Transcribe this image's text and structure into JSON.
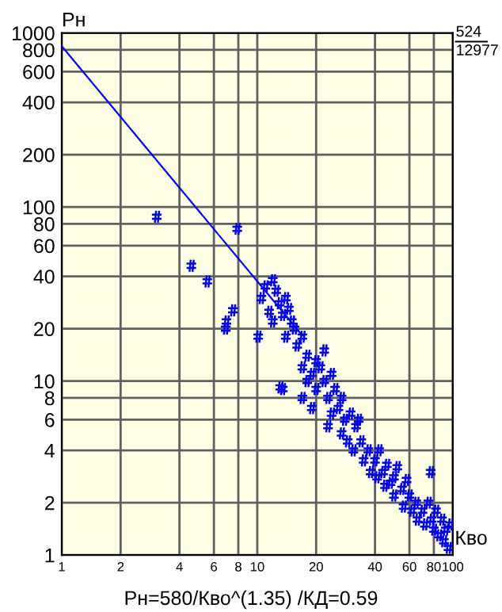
{
  "chart_data": {
    "type": "scatter",
    "xlabel": "Кво",
    "ylabel": "Рн",
    "annotations": [
      "Рн=580/Кво^(1.35) /КД=0.59",
      "524",
      "12977"
    ],
    "log": "xy",
    "grid": true,
    "xlim": [
      1,
      100
    ],
    "xticks": [
      1,
      2,
      4,
      6,
      8,
      10,
      20,
      40,
      60,
      80,
      100
    ],
    "ylim": [
      1,
      1000
    ],
    "yticks": [
      1,
      2,
      4,
      6,
      8,
      10,
      20,
      40,
      60,
      80,
      100,
      200,
      400,
      600,
      800,
      1000
    ],
    "series": [
      {
        "color": "#0000ff",
        "x": [
          3.06,
          4.6,
          5.55,
          7.9,
          6.95,
          7.5,
          6.9,
          10.1,
          13.1,
          77,
          10.5,
          11,
          12,
          12.5,
          13,
          11.5,
          12,
          13.5,
          14,
          14.5,
          15,
          15.5,
          14,
          13.5,
          16,
          17,
          18,
          17,
          18,
          19,
          20,
          21,
          20,
          22,
          23,
          22,
          24,
          25,
          24,
          26,
          27,
          28,
          27,
          30,
          29,
          32,
          31,
          34,
          35,
          33,
          37,
          38,
          40,
          42,
          41,
          44,
          46,
          45,
          48,
          50,
          50,
          52,
          55,
          56,
          58,
          60,
          62,
          65,
          66,
          70,
          72,
          75,
          78,
          80,
          82,
          85,
          88,
          90,
          92,
          95,
          97,
          17,
          19,
          23
        ],
        "values": [
          88,
          46,
          37.4,
          75,
          22,
          25.5,
          20,
          18,
          9.2,
          3.0,
          30,
          35,
          38,
          33,
          28,
          25,
          22,
          24,
          30,
          26,
          22,
          20,
          18,
          9,
          16,
          18,
          14,
          12,
          10,
          11,
          13,
          12,
          9,
          10,
          8,
          15,
          11,
          9,
          6.5,
          7,
          8,
          6,
          5,
          6.5,
          4.5,
          5.5,
          4,
          4.5,
          3.5,
          6,
          4,
          3,
          3.5,
          4,
          2.8,
          3,
          3.3,
          2.5,
          2.6,
          2.8,
          2.2,
          3.2,
          2.4,
          1.9,
          2.7,
          2.2,
          1.8,
          2,
          1.6,
          1.8,
          1.5,
          2,
          1.6,
          1.4,
          1.8,
          1.3,
          1.6,
          1.2,
          1.4,
          1.1,
          1.5,
          8,
          7,
          5.5
        ]
      },
      {
        "type": "line",
        "color": "#0000ff",
        "x": [
          1,
          17
        ],
        "values": [
          840,
          18.3
        ],
        "marker": "none"
      }
    ]
  }
}
